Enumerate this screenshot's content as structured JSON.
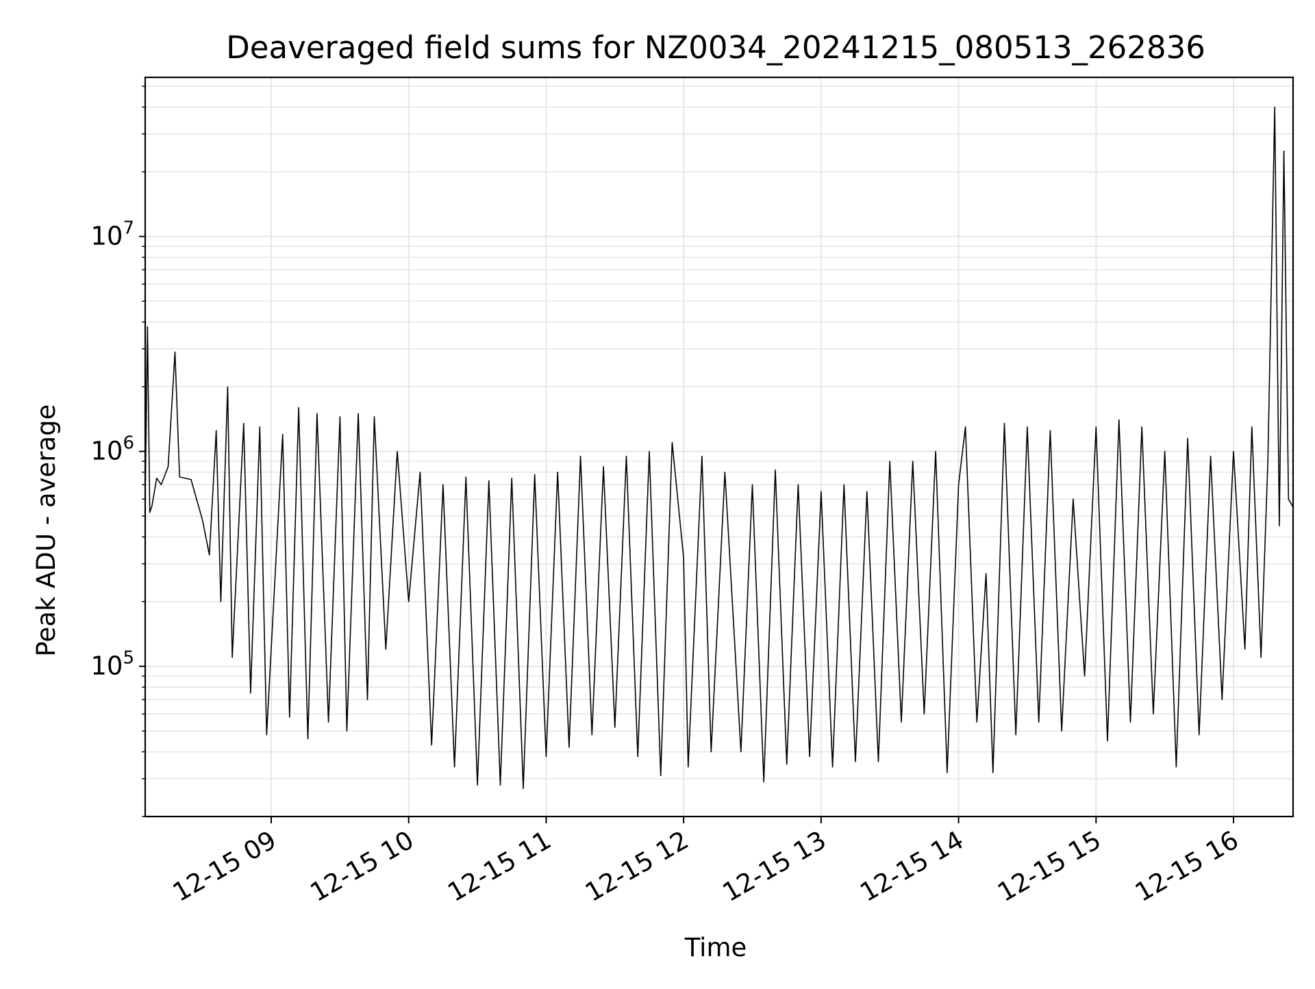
{
  "chart_data": {
    "type": "line",
    "title": "Deaveraged field sums for NZ0034_20241215_080513_262836",
    "xlabel": "Time",
    "ylabel": "Peak ADU - average",
    "yscale": "log",
    "ylim": [
      20000,
      55000000
    ],
    "x_range": [
      "12-15 08:05",
      "12-15 16:26"
    ],
    "x_ticks": [
      {
        "time": "12-15 09:00",
        "label": "12-15 09"
      },
      {
        "time": "12-15 10:00",
        "label": "12-15 10"
      },
      {
        "time": "12-15 11:00",
        "label": "12-15 11"
      },
      {
        "time": "12-15 12:00",
        "label": "12-15 12"
      },
      {
        "time": "12-15 13:00",
        "label": "12-15 13"
      },
      {
        "time": "12-15 14:00",
        "label": "12-15 14"
      },
      {
        "time": "12-15 15:00",
        "label": "12-15 15"
      },
      {
        "time": "12-15 16:00",
        "label": "12-15 16"
      }
    ],
    "y_ticks": [
      {
        "value": 100000,
        "base": "10",
        "exp": "5"
      },
      {
        "value": 1000000,
        "base": "10",
        "exp": "6"
      },
      {
        "value": 10000000,
        "base": "10",
        "exp": "7"
      }
    ],
    "grid": true,
    "line_color": "#000000",
    "grid_color": "#e6e6e6",
    "series": [
      {
        "points": [
          [
            "12-15 08:05",
            600000
          ],
          [
            "12-15 08:06",
            3800000
          ],
          [
            "12-15 08:07",
            520000
          ],
          [
            "12-15 08:08",
            560000
          ],
          [
            "12-15 08:10",
            750000
          ],
          [
            "12-15 08:12",
            700000
          ],
          [
            "12-15 08:15",
            850000
          ],
          [
            "12-15 08:18",
            2900000
          ],
          [
            "12-15 08:20",
            760000
          ],
          [
            "12-15 08:25",
            740000
          ],
          [
            "12-15 08:30",
            480000
          ],
          [
            "12-15 08:33",
            330000
          ],
          [
            "12-15 08:36",
            1250000
          ],
          [
            "12-15 08:38",
            200000
          ],
          [
            "12-15 08:41",
            2000000
          ],
          [
            "12-15 08:43",
            110000
          ],
          [
            "12-15 08:48",
            1350000
          ],
          [
            "12-15 08:51",
            75000
          ],
          [
            "12-15 08:55",
            1300000
          ],
          [
            "12-15 08:58",
            48000
          ],
          [
            "12-15 09:05",
            1200000
          ],
          [
            "12-15 09:08",
            58000
          ],
          [
            "12-15 09:12",
            1600000
          ],
          [
            "12-15 09:16",
            46000
          ],
          [
            "12-15 09:20",
            1500000
          ],
          [
            "12-15 09:25",
            55000
          ],
          [
            "12-15 09:30",
            1450000
          ],
          [
            "12-15 09:33",
            50000
          ],
          [
            "12-15 09:38",
            1500000
          ],
          [
            "12-15 09:42",
            70000
          ],
          [
            "12-15 09:45",
            1450000
          ],
          [
            "12-15 09:50",
            120000
          ],
          [
            "12-15 09:55",
            1000000
          ],
          [
            "12-15 10:00",
            200000
          ],
          [
            "12-15 10:05",
            800000
          ],
          [
            "12-15 10:10",
            43000
          ],
          [
            "12-15 10:15",
            700000
          ],
          [
            "12-15 10:20",
            34000
          ],
          [
            "12-15 10:25",
            760000
          ],
          [
            "12-15 10:30",
            28000
          ],
          [
            "12-15 10:35",
            730000
          ],
          [
            "12-15 10:40",
            28000
          ],
          [
            "12-15 10:45",
            750000
          ],
          [
            "12-15 10:50",
            27000
          ],
          [
            "12-15 10:55",
            780000
          ],
          [
            "12-15 11:00",
            38000
          ],
          [
            "12-15 11:05",
            800000
          ],
          [
            "12-15 11:10",
            42000
          ],
          [
            "12-15 11:15",
            950000
          ],
          [
            "12-15 11:20",
            48000
          ],
          [
            "12-15 11:25",
            850000
          ],
          [
            "12-15 11:30",
            52000
          ],
          [
            "12-15 11:35",
            950000
          ],
          [
            "12-15 11:40",
            38000
          ],
          [
            "12-15 11:45",
            1000000
          ],
          [
            "12-15 11:50",
            31000
          ],
          [
            "12-15 11:55",
            1100000
          ],
          [
            "12-15 12:00",
            320000
          ],
          [
            "12-15 12:02",
            34000
          ],
          [
            "12-15 12:08",
            950000
          ],
          [
            "12-15 12:12",
            40000
          ],
          [
            "12-15 12:18",
            800000
          ],
          [
            "12-15 12:25",
            40000
          ],
          [
            "12-15 12:30",
            700000
          ],
          [
            "12-15 12:35",
            29000
          ],
          [
            "12-15 12:40",
            820000
          ],
          [
            "12-15 12:45",
            35000
          ],
          [
            "12-15 12:50",
            700000
          ],
          [
            "12-15 12:55",
            38000
          ],
          [
            "12-15 13:00",
            650000
          ],
          [
            "12-15 13:05",
            34000
          ],
          [
            "12-15 13:10",
            700000
          ],
          [
            "12-15 13:15",
            36000
          ],
          [
            "12-15 13:20",
            650000
          ],
          [
            "12-15 13:25",
            36000
          ],
          [
            "12-15 13:30",
            900000
          ],
          [
            "12-15 13:35",
            55000
          ],
          [
            "12-15 13:40",
            900000
          ],
          [
            "12-15 13:45",
            60000
          ],
          [
            "12-15 13:50",
            1000000
          ],
          [
            "12-15 13:55",
            32000
          ],
          [
            "12-15 14:00",
            700000
          ],
          [
            "12-15 14:03",
            1300000
          ],
          [
            "12-15 14:08",
            55000
          ],
          [
            "12-15 14:12",
            270000
          ],
          [
            "12-15 14:15",
            32000
          ],
          [
            "12-15 14:20",
            1350000
          ],
          [
            "12-15 14:25",
            48000
          ],
          [
            "12-15 14:30",
            1300000
          ],
          [
            "12-15 14:35",
            55000
          ],
          [
            "12-15 14:40",
            1250000
          ],
          [
            "12-15 14:45",
            50000
          ],
          [
            "12-15 14:50",
            600000
          ],
          [
            "12-15 14:55",
            90000
          ],
          [
            "12-15 15:00",
            1300000
          ],
          [
            "12-15 15:05",
            45000
          ],
          [
            "12-15 15:10",
            1400000
          ],
          [
            "12-15 15:15",
            55000
          ],
          [
            "12-15 15:20",
            1300000
          ],
          [
            "12-15 15:25",
            60000
          ],
          [
            "12-15 15:30",
            1000000
          ],
          [
            "12-15 15:35",
            34000
          ],
          [
            "12-15 15:40",
            1150000
          ],
          [
            "12-15 15:45",
            48000
          ],
          [
            "12-15 15:50",
            950000
          ],
          [
            "12-15 15:55",
            70000
          ],
          [
            "12-15 16:00",
            1000000
          ],
          [
            "12-15 16:05",
            120000
          ],
          [
            "12-15 16:08",
            1300000
          ],
          [
            "12-15 16:12",
            110000
          ],
          [
            "12-15 16:15",
            900000
          ],
          [
            "12-15 16:18",
            40000000
          ],
          [
            "12-15 16:20",
            450000
          ],
          [
            "12-15 16:22",
            25000000
          ],
          [
            "12-15 16:24",
            600000
          ],
          [
            "12-15 16:26",
            550000
          ]
        ]
      }
    ]
  }
}
